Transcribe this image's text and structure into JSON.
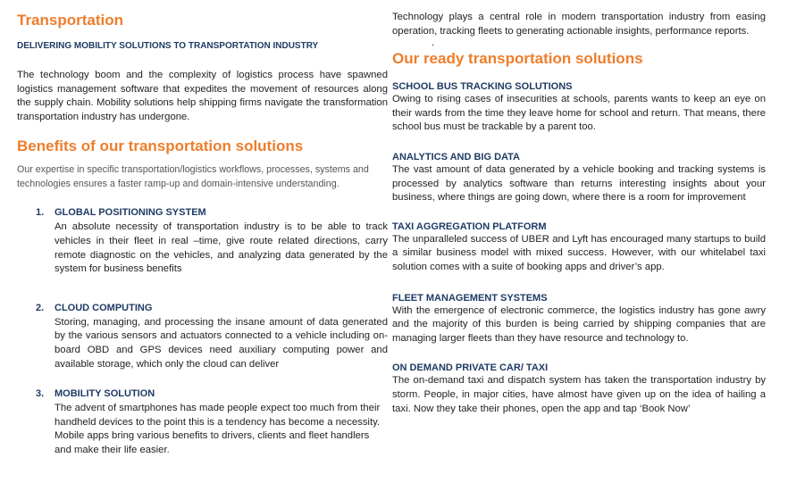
{
  "left": {
    "title": "Transportation",
    "subtitle": "DELIVERING MOBILITY SOLUTIONS TO TRANSPORTATION INDUSTRY",
    "intro": "The technology boom and the complexity of logistics process have spawned logistics management software that expedites the movement of resources along the supply chain. Mobility solutions help shipping firms navigate the transformation transportation industry has undergone.",
    "benefits_title": "Benefits of our transportation solutions",
    "benefits_intro": "Our expertise in specific transportation/logistics workflows, processes, systems and technologies ensures a faster ramp-up and domain-intensive understanding.",
    "items": [
      {
        "num": "1.",
        "heading": "GLOBAL POSITIONING SYSTEM",
        "text": "An absolute necessity of transportation industry is to be able to track vehicles in their fleet in real –time, give route related directions, carry remote diagnostic on the vehicles, and analyzing data generated by the system for business benefits"
      },
      {
        "num": "2.",
        "heading": "CLOUD COMPUTING",
        "text": "Storing, managing, and processing the insane amount of data generated by the various sensors and actuators connected to a vehicle including on-board OBD and GPS devices need auxiliary computing power and available storage, which only the cloud can deliver"
      },
      {
        "num": "3.",
        "heading": "MOBILITY SOLUTION",
        "text": "The advent of smartphones has made people expect too much from their handheld devices to the point this is a tendency has become a necessity. Mobile apps bring various benefits to drivers, clients and fleet handlers and make their life easier."
      }
    ]
  },
  "right": {
    "intro": "Technology plays a central role in modern transportation industry from easing operation, tracking fleets to generating actionable insights, performance reports.",
    "dot": ".",
    "solutions_title": "Our ready transportation solutions",
    "sections": [
      {
        "heading": "SCHOOL BUS TRACKING SOLUTIONS",
        "text": "Owing to rising cases of insecurities at schools, parents wants to keep an eye on their wards from the time they leave home for school and return. That means, there school bus must be trackable by a parent too."
      },
      {
        "heading": "ANALYTICS AND BIG DATA",
        "text": "The vast amount of data generated by a vehicle booking and tracking systems is processed by analytics software than returns interesting insights about your business, where things are going down, where there is a room for improvement"
      },
      {
        "heading": "TAXI AGGREGATION PLATFORM",
        "text": "The unparalleled success of UBER and Lyft has encouraged many startups to build a similar business model with mixed success. However, with our whitelabel taxi solution comes with a suite of booking apps and driver’s app."
      },
      {
        "heading": "FLEET MANAGEMENT SYSTEMS",
        "text": "With the emergence of electronic commerce, the logistics industry has gone awry and the majority of this burden is being carried by shipping companies that are managing larger fleets than they have resource and technology to."
      },
      {
        "heading": "ON DEMAND PRIVATE CAR/ TAXI",
        "text": "The on-demand taxi and dispatch system has taken the transportation industry by storm.  People, in major cities, have almost have given up on the idea of hailing a taxi. Now they take their phones, open the app and tap ‘Book Now’"
      }
    ]
  }
}
